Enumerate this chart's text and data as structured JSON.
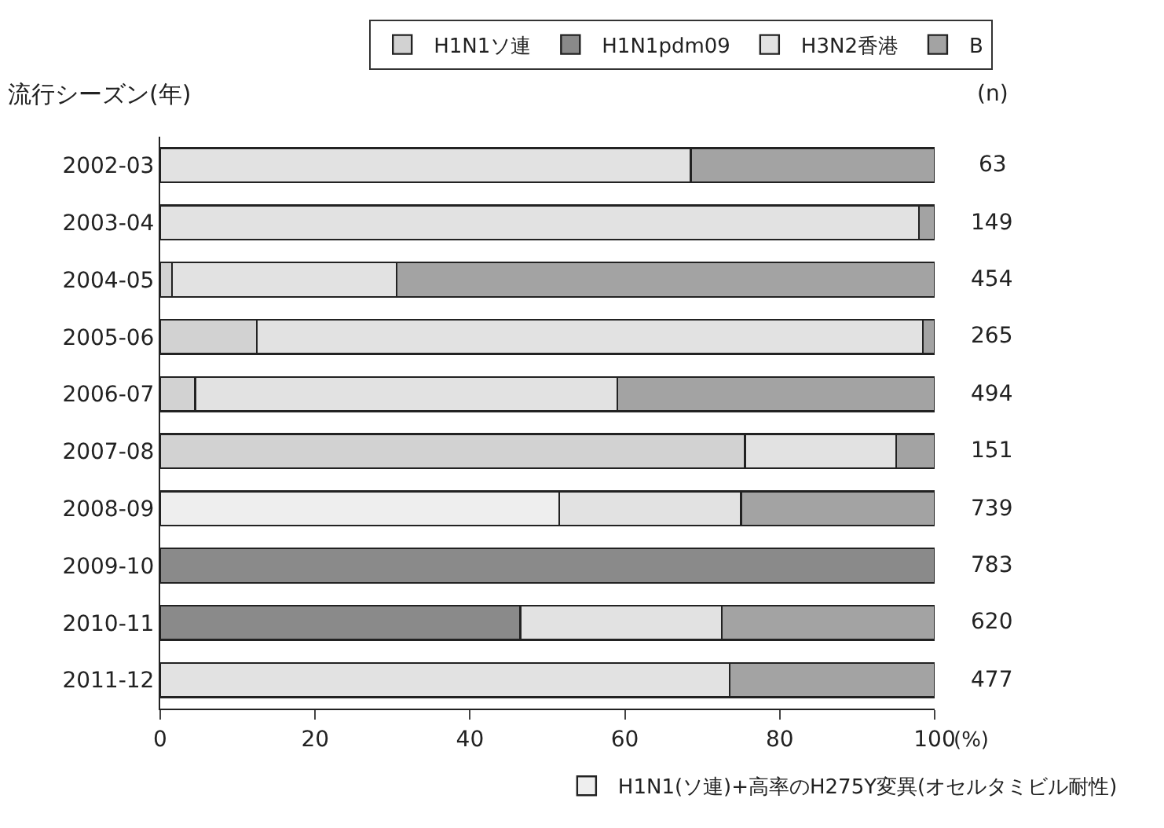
{
  "chart_data": {
    "type": "bar",
    "orientation": "horizontal",
    "stacked": true,
    "ylabel": "流行シーズン(年)",
    "xlabel": "(%)",
    "categories": [
      "2002-03",
      "2003-04",
      "2004-05",
      "2005-06",
      "2006-07",
      "2007-08",
      "2008-09",
      "2009-10",
      "2010-11",
      "2011-12"
    ],
    "series": [
      {
        "name": "H1N1ソ連",
        "color": "#d2d2d2",
        "values": [
          null,
          null,
          1.5,
          12.5,
          4.5,
          75.5,
          null,
          null,
          null,
          null
        ]
      },
      {
        "name": "H1N1(ソ連)+高率のH275Y変異(オセルタミビル耐性)",
        "color": "#eeeeee",
        "values": [
          null,
          null,
          null,
          null,
          null,
          null,
          51.5,
          null,
          null,
          null
        ]
      },
      {
        "name": "H1N1pdm09",
        "color": "#8a8a8a",
        "values": [
          null,
          null,
          null,
          null,
          null,
          null,
          null,
          100,
          46.5,
          null
        ]
      },
      {
        "name": "H3N2香港",
        "color": "#e2e2e2",
        "values": [
          68.5,
          98,
          29,
          86,
          54.5,
          19.5,
          23.5,
          null,
          26,
          73.5
        ]
      },
      {
        "name": "B",
        "color": "#a3a3a3",
        "values": [
          31.5,
          2,
          69.5,
          1.5,
          41,
          5,
          25,
          null,
          27.5,
          26.5
        ]
      }
    ],
    "xlim": [
      0,
      100
    ],
    "xticks": [
      0,
      20,
      40,
      60,
      80,
      100
    ],
    "legend": "top",
    "annotations": [
      "(n)",
      "63",
      "149",
      "454",
      "265",
      "494",
      "151",
      "739",
      "783",
      "620",
      "477"
    ]
  }
}
